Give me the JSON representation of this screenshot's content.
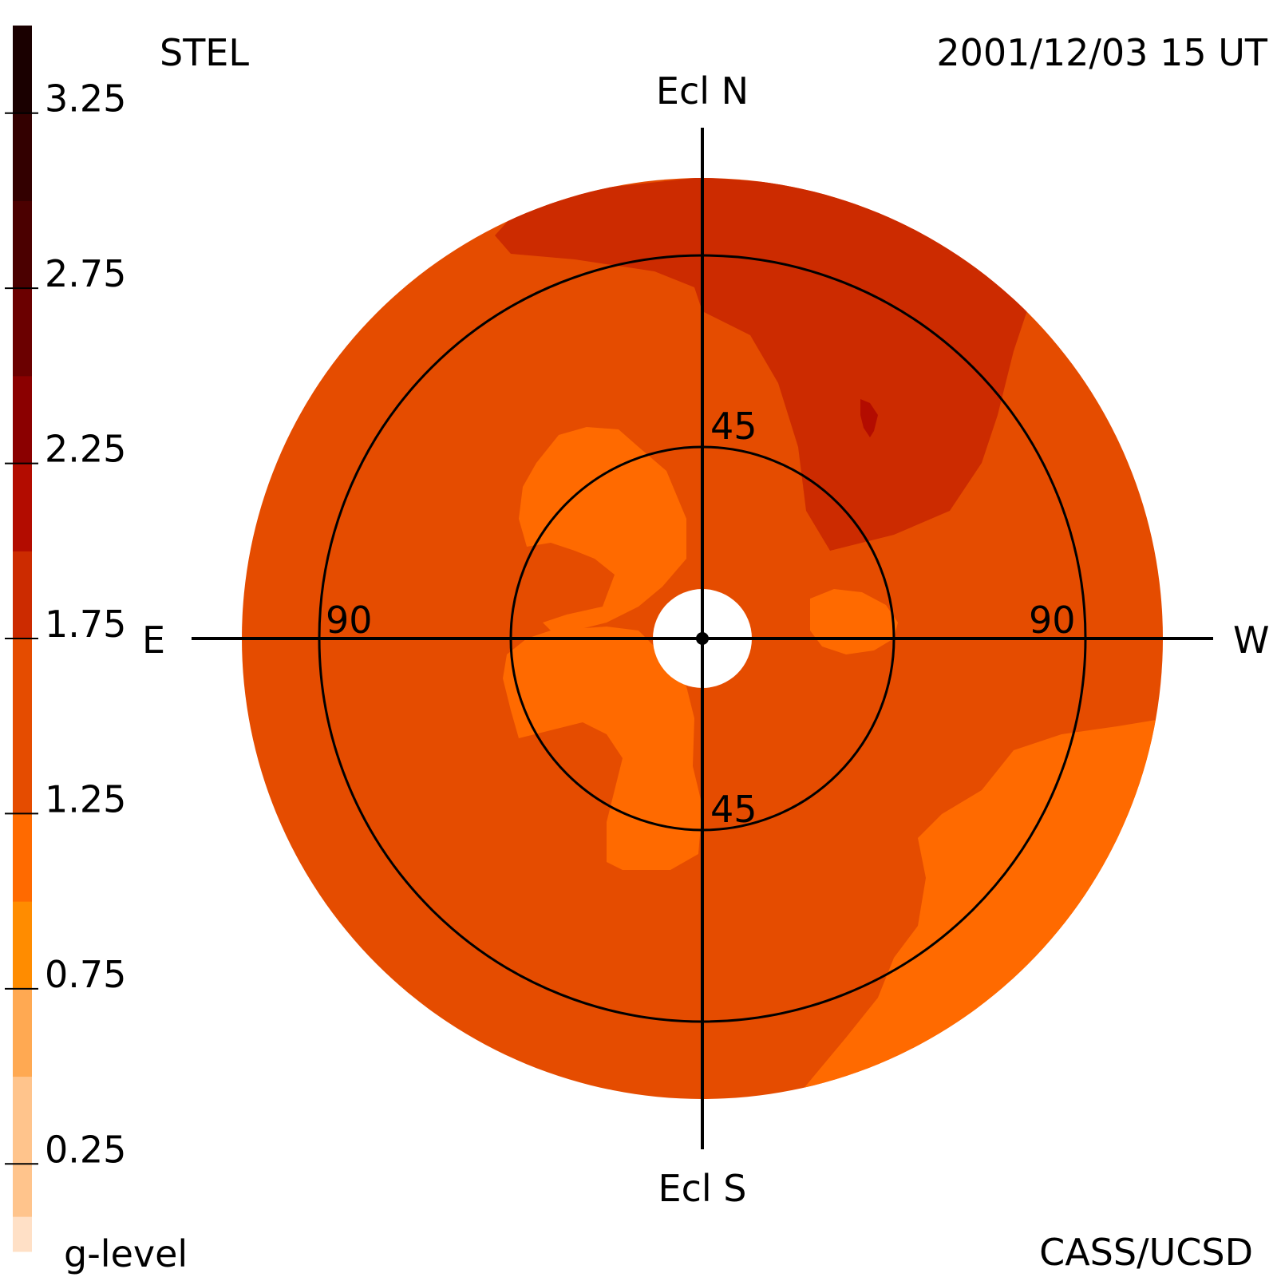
{
  "header": {
    "instrument": "STEL",
    "datetime": "2001/12/03 15 UT",
    "credit": "CASS/UCSD"
  },
  "chart_data": {
    "type": "heatmap",
    "projection": "polar sky map (fisheye) centered on Sun",
    "direction_labels": {
      "north": "Ecl N",
      "south": "Ecl S",
      "east": "E",
      "west": "W"
    },
    "ring_labels": {
      "inner_top": "45",
      "inner_bottom": "45",
      "outer_left": "90",
      "outer_right": "90"
    },
    "rings_deg": [
      45,
      90
    ],
    "outer_edge_deg": 110,
    "occulter_deg": 12,
    "colorbar": {
      "label": "g-level",
      "range": [
        0,
        3.5
      ],
      "ticks": [
        0.25,
        0.75,
        1.25,
        1.75,
        2.25,
        2.75,
        3.25
      ],
      "tick_labels": [
        "0.25",
        "0.75",
        "1.25",
        "1.75",
        "2.25",
        "2.75",
        "3.25"
      ],
      "bands": [
        {
          "from": 0.0,
          "to": 0.1,
          "color": "#FFE0C6"
        },
        {
          "from": 0.1,
          "to": 0.5,
          "color": "#FFC48C"
        },
        {
          "from": 0.5,
          "to": 0.75,
          "color": "#FFA952"
        },
        {
          "from": 0.75,
          "to": 1.0,
          "color": "#FF8C00"
        },
        {
          "from": 1.0,
          "to": 1.25,
          "color": "#FF6A00"
        },
        {
          "from": 1.25,
          "to": 1.75,
          "color": "#E54C00"
        },
        {
          "from": 1.75,
          "to": 2.0,
          "color": "#CC2B00"
        },
        {
          "from": 2.0,
          "to": 2.25,
          "color": "#B30C00"
        },
        {
          "from": 2.25,
          "to": 2.5,
          "color": "#8B0000"
        },
        {
          "from": 2.5,
          "to": 2.75,
          "color": "#6B0000"
        },
        {
          "from": 2.75,
          "to": 3.0,
          "color": "#4B0000"
        },
        {
          "from": 3.0,
          "to": 3.25,
          "color": "#330000"
        },
        {
          "from": 3.25,
          "to": 3.5,
          "color": "#1A0000"
        }
      ]
    },
    "regions": [
      {
        "name": "background",
        "g_level": 1.5,
        "color": "#E54C00"
      },
      {
        "name": "north-west enhancement",
        "g_level": 1.85,
        "color": "#CC2B00"
      },
      {
        "name": "north-west peak",
        "g_level": 2.1,
        "color": "#B30C00"
      },
      {
        "name": "inner east depletion",
        "g_level": 1.1,
        "color": "#FF6A00"
      },
      {
        "name": "inner west depletion",
        "g_level": 1.1,
        "color": "#FF6A00"
      },
      {
        "name": "south-east depletion",
        "g_level": 1.1,
        "color": "#FF6A00"
      },
      {
        "name": "south-west depletion",
        "g_level": 1.1,
        "color": "#FF6A00"
      }
    ]
  }
}
